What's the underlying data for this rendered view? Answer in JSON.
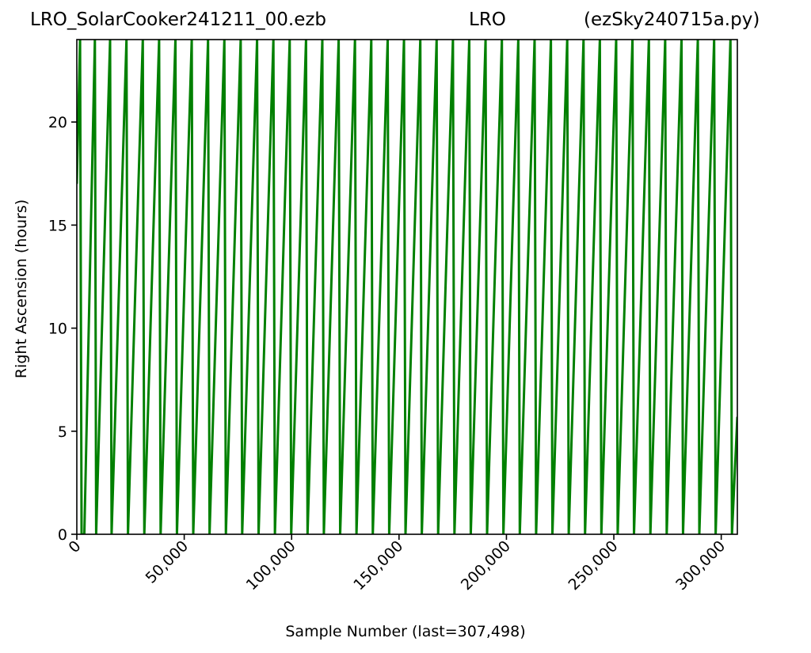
{
  "title": {
    "left": "LRO_SolarCooker241211_00.ezb",
    "center": "LRO",
    "right": "(ezSky240715a.py)"
  },
  "chart_data": {
    "type": "line",
    "xlabel": "Sample Number (last=307,498)",
    "ylabel": "Right Ascension (hours)",
    "xlim": [
      0,
      307498
    ],
    "ylim": [
      0,
      24
    ],
    "xticks": [
      0,
      50000,
      100000,
      150000,
      200000,
      250000,
      300000
    ],
    "xtick_labels": [
      "0",
      "50,000",
      "100,000",
      "150,000",
      "200,000",
      "250,000",
      "300,000"
    ],
    "yticks": [
      0,
      5,
      10,
      15,
      20
    ],
    "ytick_labels": [
      "0",
      "5",
      "10",
      "15",
      "20"
    ],
    "grid": false,
    "series_color": "#008000",
    "series": [
      {
        "x": [
          0,
          1500,
          2200,
          3500,
          8400,
          9000,
          15500,
          16200,
          23100,
          23800,
          30700,
          31400,
          38300,
          39000,
          45900,
          46600,
          53500,
          54200,
          61100,
          61800,
          68700,
          69400,
          76300,
          77000,
          83900,
          84600,
          91500,
          92200,
          99100,
          99800,
          106700,
          107400,
          114300,
          115000,
          121900,
          122600,
          129500,
          130200,
          137100,
          137800,
          144700,
          145400,
          152300,
          153000,
          159900,
          160600,
          167500,
          168200,
          175100,
          175800,
          182700,
          183400,
          190300,
          191000,
          197900,
          198600,
          205500,
          206200,
          213100,
          213800,
          220700,
          221400,
          228300,
          229000,
          235900,
          236600,
          243500,
          244200,
          251100,
          251800,
          258700,
          259400,
          266300,
          267000,
          273900,
          274600,
          281500,
          282200,
          289100,
          289800,
          296700,
          297400,
          304300,
          305000,
          307498
        ],
        "y": [
          17,
          24,
          0,
          0,
          24,
          0,
          24,
          0,
          24,
          0,
          24,
          0,
          24,
          0,
          24,
          0,
          24,
          0,
          24,
          0,
          24,
          0,
          24,
          0,
          24,
          0,
          24,
          0,
          24,
          0,
          24,
          0,
          24,
          0,
          24,
          0,
          24,
          0,
          24,
          0,
          24,
          0,
          24,
          0,
          24,
          0,
          24,
          0,
          24,
          0,
          24,
          0,
          24,
          0,
          24,
          0,
          24,
          0,
          24,
          0,
          24,
          0,
          24,
          0,
          24,
          0,
          24,
          0,
          24,
          0,
          24,
          0,
          24,
          0,
          24,
          0,
          24,
          0,
          24,
          0,
          24,
          0,
          24,
          0,
          5.7
        ]
      }
    ]
  }
}
